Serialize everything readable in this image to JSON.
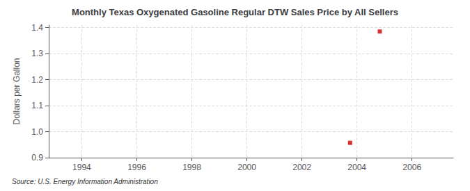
{
  "chart_data": {
    "type": "scatter",
    "title": "Monthly Texas Oxygenated Gasoline Regular DTW Sales Price by All Sellers",
    "ylabel": "Dollars per Gallon",
    "annotation": "Source: U.S. Energy Information Administration",
    "x": [
      2003.75,
      2004.83
    ],
    "values": [
      0.957,
      1.385
    ],
    "color": "#cc0000",
    "marker": "square",
    "xlim": [
      1992.8,
      2007.5
    ],
    "ylim": [
      0.9,
      1.41
    ],
    "xticks": [
      1994,
      1996,
      1998,
      2000,
      2002,
      2004,
      2006
    ],
    "yticks": [
      0.9,
      {
        "value": 1,
        "label": "1.0"
      },
      1.1,
      1.2,
      1.3,
      1.4
    ],
    "grid": true
  }
}
